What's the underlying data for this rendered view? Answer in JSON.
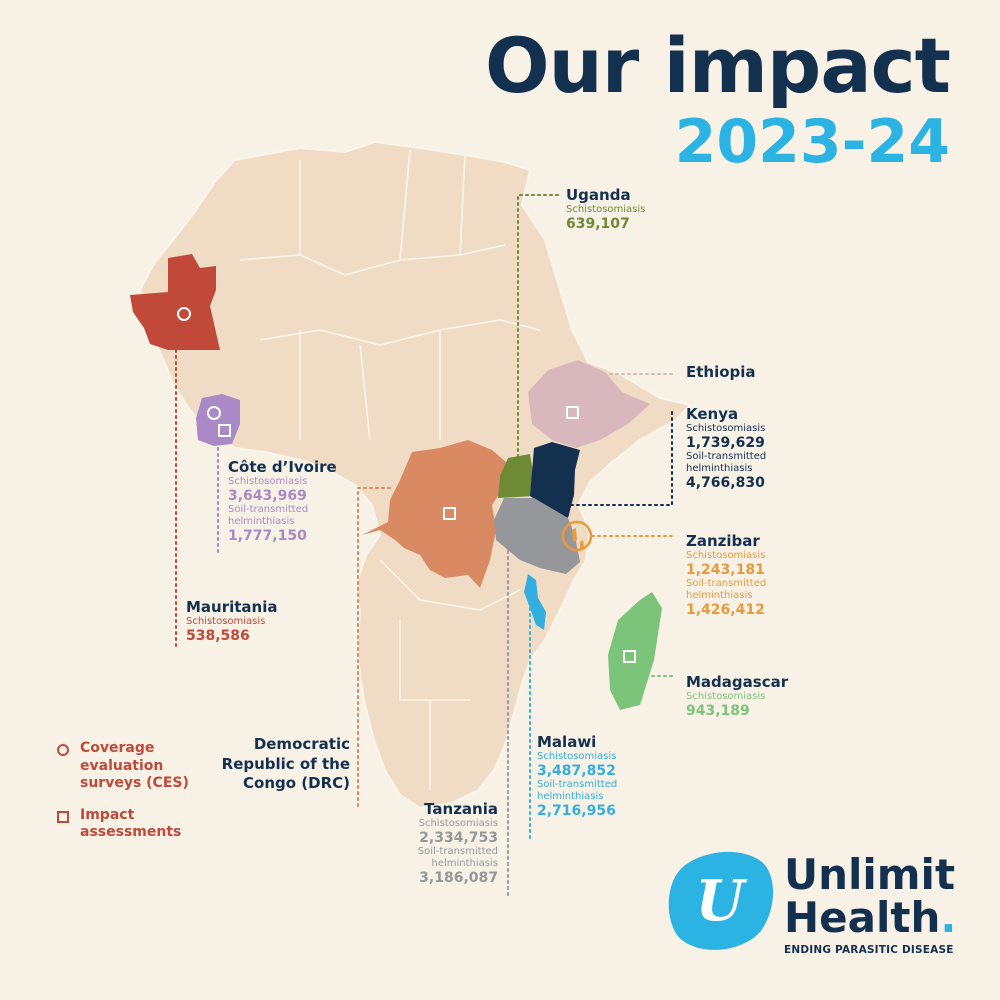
{
  "header": {
    "title": "Our impact",
    "period": "2023-24"
  },
  "legend": {
    "ces": "Coverage evaluation surveys (CES)",
    "ia": "Impact assessments"
  },
  "countries": {
    "uganda": {
      "name": "Uganda",
      "d1": "Schistosomiasis",
      "v1": "639,107",
      "color": "#6f8a35"
    },
    "ethiopia": {
      "name": "Ethiopia",
      "color": "#d9b8bd"
    },
    "kenya": {
      "name": "Kenya",
      "d1": "Schistosomiasis",
      "v1": "1,739,629",
      "d2": "Soil-transmitted helminthiasis",
      "v2": "4,766,830",
      "color": "#13304f"
    },
    "zanzibar": {
      "name": "Zanzibar",
      "d1": "Schistosomiasis",
      "v1": "1,243,181",
      "d2": "Soil-transmitted helminthiasis",
      "v2": "1,426,412",
      "color": "#e89a3c"
    },
    "madagascar": {
      "name": "Madagascar",
      "d1": "Schistosomiasis",
      "v1": "943,189",
      "color": "#7cc47a"
    },
    "malawi": {
      "name": "Malawi",
      "d1": "Schistosomiasis",
      "v1": "3,487,852",
      "d2": "Soil-transmitted helminthiasis",
      "v2": "2,716,956",
      "color": "#33aee0"
    },
    "tanzania": {
      "name": "Tanzania",
      "d1": "Schistosomiasis",
      "v1": "2,334,753",
      "d2": "Soil-transmitted helminthiasis",
      "v2": "3,186,087",
      "color": "#95979a"
    },
    "drc": {
      "name": "Democratic Republic of the Congo (DRC)",
      "color": "#d98a62"
    },
    "cotedivoire": {
      "name": "Côte d’Ivoire",
      "d1": "Schistosomiasis",
      "v1": "3,643,969",
      "d2": "Soil-transmitted helminthiasis",
      "v2": "1,777,150",
      "color": "#a98ac6"
    },
    "mauritania": {
      "name": "Mauritania",
      "d1": "Schistosomiasis",
      "v1": "538,586",
      "color": "#c0493a"
    }
  },
  "logo": {
    "line1": "Unlimit",
    "line2": "Health",
    "dot": ".",
    "tagline": "ENDING PARASITIC DISEASE",
    "mark": "U"
  }
}
